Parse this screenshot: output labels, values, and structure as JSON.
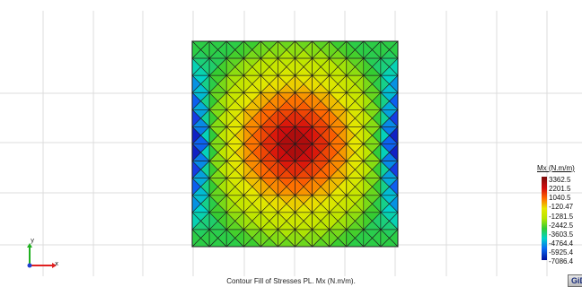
{
  "viewport": {
    "caption": "Contour Fill of Stresses PL. Mx (N.m/m).",
    "axes": {
      "x_label": "x",
      "y_label": "y"
    }
  },
  "legend": {
    "title": "Mx (N.m/m)",
    "values": [
      "3362.5",
      "2201.5",
      "1040.5",
      "-120.47",
      "-1281.5",
      "-2442.5",
      "-3603.5",
      "-4764.4",
      "-5925.4",
      "-7086.4"
    ],
    "colors": [
      "#7a0d0d",
      "#d40d0d",
      "#ff6a00",
      "#e6e600",
      "#b7e500",
      "#33cc33",
      "#00d2c8",
      "#0a6cf2",
      "#1a2cdc",
      "#000f9a"
    ]
  },
  "logo": {
    "label": "GiD"
  }
}
